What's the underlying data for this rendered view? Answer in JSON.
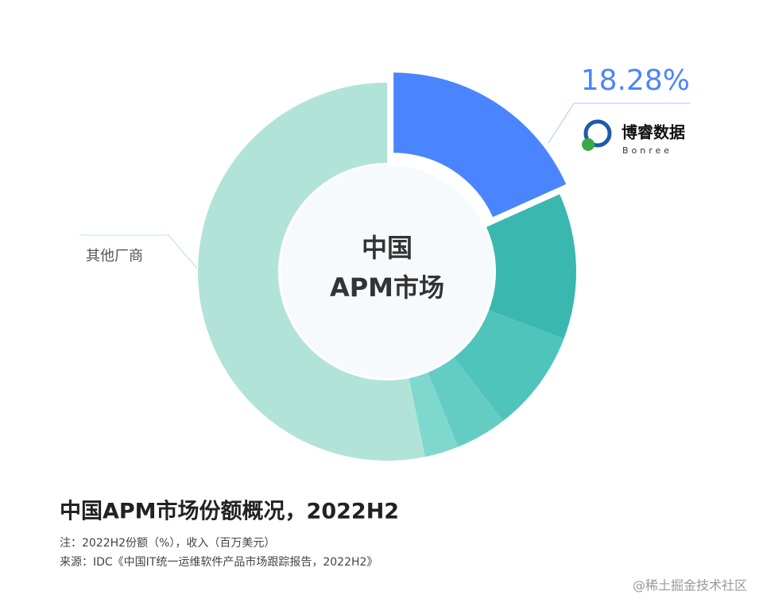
{
  "chart_data": {
    "type": "donut",
    "center_text": [
      "中国",
      "APM市场"
    ],
    "title": "中国APM市场份额概况，2022H2",
    "notes": [
      "注：2022H2份额（%），收入（百万美元）",
      "来源：IDC《中国IT统一运维软件产品市场跟踪报告，2022H2》"
    ],
    "watermark": "@稀土掘金技术社区",
    "logo_subtitle": "Bonree",
    "categories": [
      "博睿数据",
      null,
      null,
      null,
      null,
      "其他厂商"
    ],
    "values": [
      18.28,
      12.5,
      8.7,
      4.4,
      2.9,
      53.22
    ],
    "value_labels": [
      "18.28%",
      null,
      null,
      null,
      null,
      null
    ],
    "colors": [
      "#4a85ff",
      "#3ab8b0",
      "#4fc4bb",
      "#63cdc3",
      "#7fd8cd",
      "#b2e3d9"
    ],
    "highlight": 0
  }
}
